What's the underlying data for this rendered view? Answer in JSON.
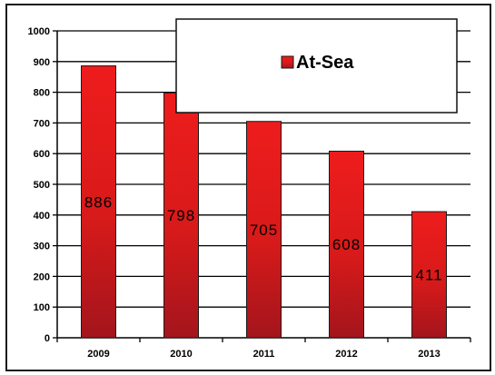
{
  "chart_data": {
    "type": "bar",
    "title": "",
    "xlabel": "",
    "ylabel": "",
    "categories": [
      "2009",
      "2010",
      "2011",
      "2012",
      "2013"
    ],
    "series": [
      {
        "name": "At-Sea",
        "values": [
          886,
          798,
          705,
          608,
          411
        ]
      }
    ],
    "data_labels": [
      "886",
      "798",
      "705",
      "608",
      "411"
    ],
    "ylim": [
      0,
      1000
    ],
    "yticks": [
      0,
      100,
      200,
      300,
      400,
      500,
      600,
      700,
      800,
      900,
      1000
    ],
    "grid": true,
    "legend_position": "top-right",
    "colors": {
      "bar_top": "#ee1c1c",
      "bar_bottom": "#a3151c",
      "bar_outline": "#1a1a1a",
      "gridline": "#000000"
    }
  }
}
